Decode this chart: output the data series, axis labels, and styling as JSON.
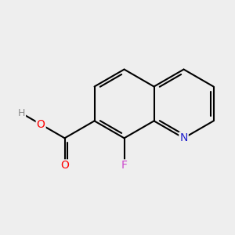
{
  "background_color": "#eeeeee",
  "bond_color": "#000000",
  "bond_width": 1.5,
  "atom_colors": {
    "N": "#2020cc",
    "O": "#ff0000",
    "H": "#888888",
    "F": "#cc44cc"
  },
  "font_size": 10,
  "figsize": [
    3.0,
    3.0
  ],
  "dpi": 100,
  "bl": 0.32
}
